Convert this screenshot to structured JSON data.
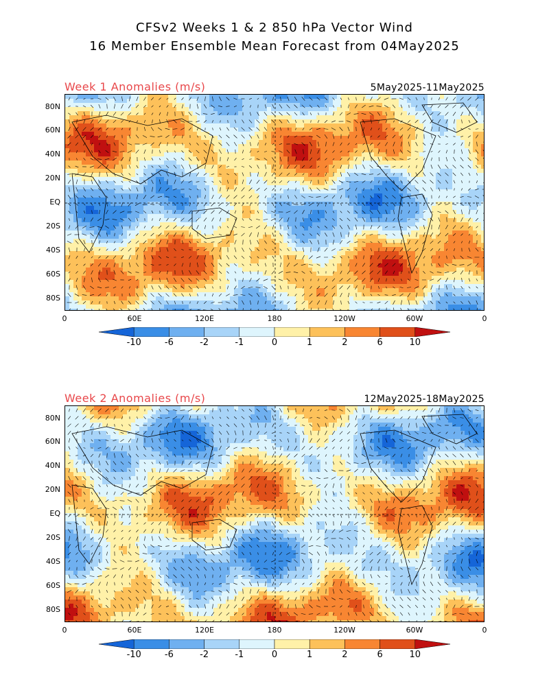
{
  "header": {
    "title_line1": "CFSv2 Weeks 1 & 2 850 hPa Vector Wind",
    "title_line2": "16 Member Ensemble Mean Forecast from 04May2025"
  },
  "panels": [
    {
      "label": "Week 1 Anomalies (m/s)",
      "dates": "5May2025-11May2025"
    },
    {
      "label": "Week 2 Anomalies (m/s)",
      "dates": "12May2025-18May2025"
    }
  ],
  "axes": {
    "lat_labels": [
      "80N",
      "60N",
      "40N",
      "20N",
      "EQ",
      "20S",
      "40S",
      "60S",
      "80S"
    ],
    "lon_labels": [
      "0",
      "60E",
      "120E",
      "180",
      "120W",
      "60W",
      "0"
    ]
  },
  "colorbar": {
    "labels": [
      "-10",
      "-6",
      "-2",
      "-1",
      "0",
      "1",
      "2",
      "6",
      "10"
    ],
    "colors": [
      "#1565d8",
      "#3a8ee6",
      "#6fb0f0",
      "#a8d4f8",
      "#def5fd",
      "#fff1a8",
      "#fdc15a",
      "#f88632",
      "#e0501a",
      "#c01010"
    ]
  }
}
